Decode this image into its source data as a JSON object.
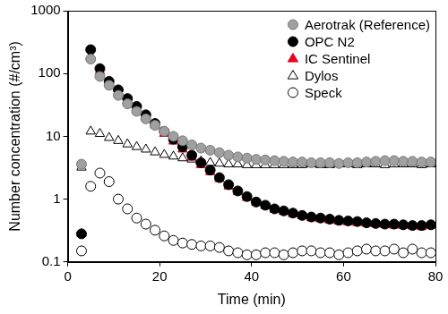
{
  "chart_data": {
    "type": "scatter",
    "x_label": "Time (min)",
    "y_label": "Number concentration (#/cm³)",
    "log": "y",
    "grid": false,
    "legend": "top right",
    "xlim": [
      0,
      80
    ],
    "xticks": [
      0,
      20,
      40,
      60,
      80
    ],
    "ylim": [
      0.1,
      1000
    ],
    "yticks": [
      0.1,
      1,
      10,
      100,
      1000
    ],
    "x": [
      3,
      5,
      7,
      9,
      11,
      13,
      15,
      17,
      19,
      21,
      23,
      25,
      27,
      29,
      31,
      33,
      35,
      37,
      39,
      41,
      43,
      45,
      47,
      49,
      51,
      53,
      55,
      57,
      59,
      61,
      63,
      65,
      67,
      69,
      71,
      73,
      75,
      77,
      79
    ],
    "series": [
      {
        "name": "Aerotrak (Reference)",
        "color": "#a0a0a0",
        "marker": "circle",
        "values": [
          3.6,
          170,
          90,
          65,
          45,
          33,
          25,
          19,
          15,
          12,
          10,
          8.5,
          7.3,
          6.5,
          6,
          5.5,
          5,
          4.7,
          4.5,
          4.3,
          4.2,
          4.1,
          4.0,
          3.9,
          3.9,
          3.8,
          3.8,
          3.8,
          3.7,
          3.8,
          3.8,
          3.9,
          4.0,
          4.1,
          4.1,
          4.0,
          4.0,
          3.9,
          3.9
        ]
      },
      {
        "name": "OPC N2",
        "color": "#000000",
        "marker": "circle",
        "values": [
          0.28,
          240,
          120,
          75,
          55,
          40,
          30,
          22,
          16,
          12,
          9,
          6.8,
          5,
          3.8,
          2.9,
          2.2,
          1.7,
          1.35,
          1.1,
          0.9,
          0.8,
          0.7,
          0.65,
          0.6,
          0.55,
          0.52,
          0.5,
          0.48,
          0.46,
          0.45,
          0.44,
          0.42,
          0.41,
          0.4,
          0.4,
          0.39,
          0.38,
          0.38,
          0.39
        ]
      },
      {
        "name": "IC Sentinel",
        "color": "#e8001c",
        "marker": "triangle",
        "values": [
          0.28,
          190,
          110,
          70,
          50,
          37,
          27,
          20,
          15,
          11,
          8.3,
          6.2,
          4.6,
          3.5,
          2.7,
          2.1,
          1.6,
          1.3,
          1.05,
          0.88,
          0.78,
          0.68,
          0.63,
          0.58,
          0.54,
          0.5,
          0.48,
          0.46,
          0.44,
          0.43,
          0.42,
          0.41,
          0.4,
          0.39,
          0.38,
          0.38,
          0.37,
          0.36,
          0.38
        ]
      },
      {
        "name": "Dylos",
        "color": "#000000",
        "marker": "triangle-open",
        "values": [
          3.2,
          12,
          11,
          9.5,
          8.5,
          7.5,
          6.8,
          6.2,
          5.6,
          5.1,
          4.8,
          4.5,
          4.3,
          4.0,
          3.8,
          3.7,
          3.6,
          3.6,
          3.5,
          3.5,
          3.5,
          3.5,
          3.5,
          3.5,
          3.5,
          3.6,
          3.5,
          3.5,
          3.6,
          3.6,
          3.5,
          3.6,
          3.6,
          3.5,
          3.6,
          3.6,
          3.6,
          3.5,
          3.6
        ]
      },
      {
        "name": "Speck",
        "color": "#000000",
        "marker": "circle-open",
        "values": [
          0.15,
          1.6,
          2.6,
          1.9,
          1.0,
          0.7,
          0.5,
          0.4,
          0.32,
          0.26,
          0.22,
          0.2,
          0.19,
          0.18,
          0.18,
          0.17,
          0.15,
          0.14,
          0.13,
          0.13,
          0.14,
          0.14,
          0.13,
          0.14,
          0.15,
          0.15,
          0.14,
          0.14,
          0.13,
          0.14,
          0.15,
          0.16,
          0.15,
          0.15,
          0.16,
          0.14,
          0.16,
          0.14,
          0.14
        ]
      }
    ]
  }
}
